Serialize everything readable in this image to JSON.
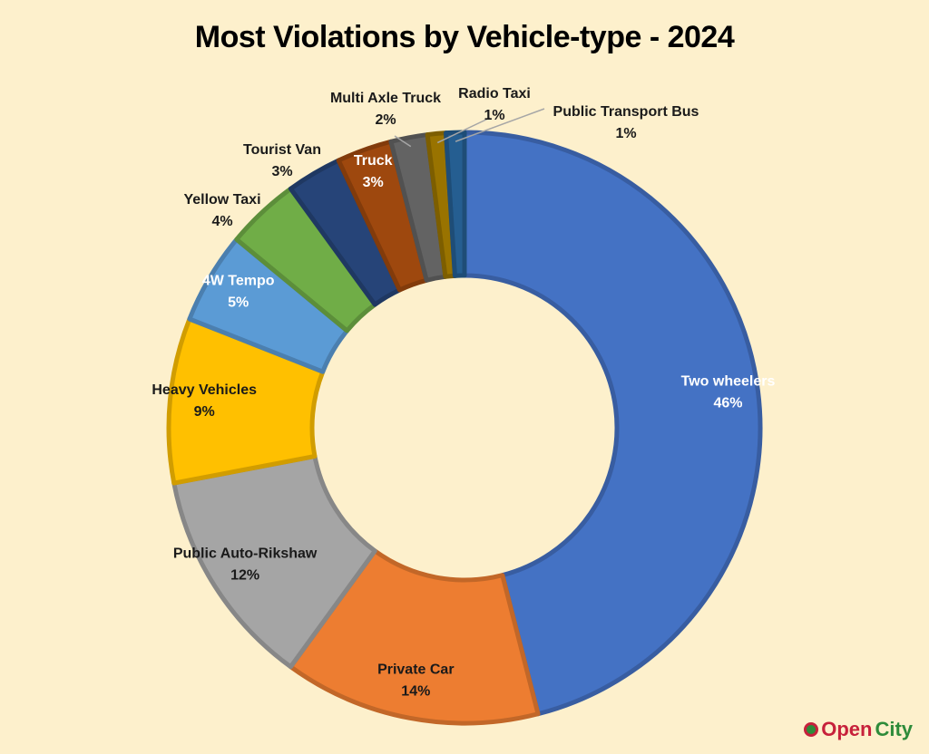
{
  "chart_data": {
    "type": "pie",
    "variant": "donut",
    "title": "Most Violations by Vehicle-type - 2024",
    "slices": [
      {
        "label": "Two wheelers",
        "value": 46,
        "value_label": "46%",
        "color": "#4472c4",
        "text_color": "#ffffff"
      },
      {
        "label": "Private Car",
        "value": 14,
        "value_label": "14%",
        "color": "#ed7d31",
        "text_color": "#1a1a1a"
      },
      {
        "label": "Public Auto-Rikshaw",
        "value": 12,
        "value_label": "12%",
        "color": "#a5a5a5",
        "text_color": "#1a1a1a"
      },
      {
        "label": "Heavy Vehicles",
        "value": 9,
        "value_label": "9%",
        "color": "#ffc000",
        "text_color": "#1a1a1a"
      },
      {
        "label": "4W Tempo",
        "value": 5,
        "value_label": "5%",
        "color": "#5b9bd5",
        "text_color": "#ffffff"
      },
      {
        "label": "Yellow Taxi",
        "value": 4,
        "value_label": "4%",
        "color": "#70ad47",
        "text_color": "#1a1a1a"
      },
      {
        "label": "Tourist Van",
        "value": 3,
        "value_label": "3%",
        "color": "#264478",
        "text_color": "#1a1a1a"
      },
      {
        "label": "Truck",
        "value": 3,
        "value_label": "3%",
        "color": "#9e480e",
        "text_color": "#ffffff"
      },
      {
        "label": "Multi Axle Truck",
        "value": 2,
        "value_label": "2%",
        "color": "#636363",
        "text_color": "#1a1a1a"
      },
      {
        "label": "Radio Taxi",
        "value": 1,
        "value_label": "1%",
        "color": "#997300",
        "text_color": "#1a1a1a"
      },
      {
        "label": "Public Transport Bus",
        "value": 1,
        "value_label": "1%",
        "color": "#255e91",
        "text_color": "#1a1a1a"
      }
    ]
  },
  "logo": {
    "part1": "Open",
    "part2": "City"
  }
}
